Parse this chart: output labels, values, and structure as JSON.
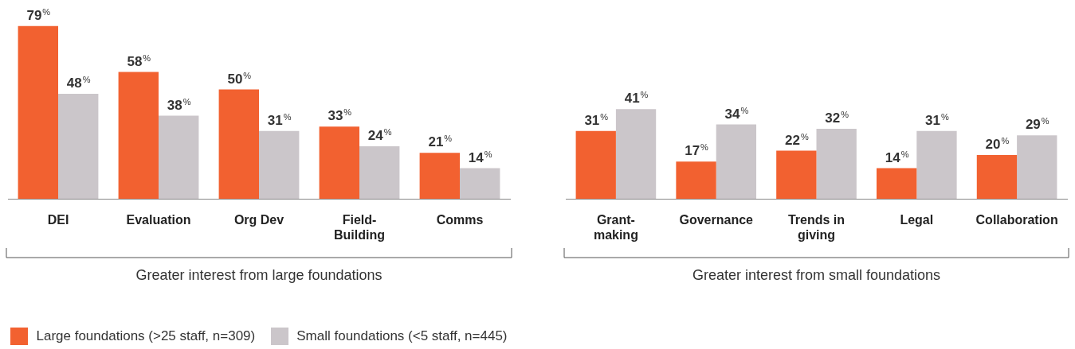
{
  "chart_data": [
    {
      "type": "bar",
      "categories": [
        "DEI",
        "Evaluation",
        "Org Dev",
        "Field-Building",
        "Comms"
      ],
      "legend": "bottom",
      "annotations": [
        "Greater interest from large foundations"
      ],
      "series": [
        {
          "name": "Large foundations (>25 staff, n=309)",
          "color": "#f26130",
          "values": [
            79,
            58,
            50,
            33,
            21
          ],
          "value_labels": [
            "79%",
            "58%",
            "50%",
            "33%",
            "21%"
          ]
        },
        {
          "name": "Small foundations (<5 staff, n=445)",
          "color": "#cbc6ca",
          "values": [
            48,
            38,
            31,
            24,
            14
          ],
          "value_labels": [
            "48%",
            "38%",
            "31%",
            "24%",
            "14%"
          ]
        }
      ]
    },
    {
      "type": "bar",
      "categories": [
        "Grant-making",
        "Governance",
        "Trends in giving",
        "Legal",
        "Collaboration"
      ],
      "annotations": [
        "Greater interest from small foundations"
      ],
      "series": [
        {
          "color": "#f26130",
          "values": [
            31,
            17,
            22,
            14,
            20
          ],
          "value_labels": [
            "31%",
            "17%",
            "22%",
            "14%",
            "20%"
          ]
        },
        {
          "color": "#cbc6ca",
          "values": [
            41,
            34,
            32,
            31,
            29
          ],
          "value_labels": [
            "41%",
            "34%",
            "32%",
            "31%",
            "29%"
          ]
        }
      ]
    }
  ]
}
